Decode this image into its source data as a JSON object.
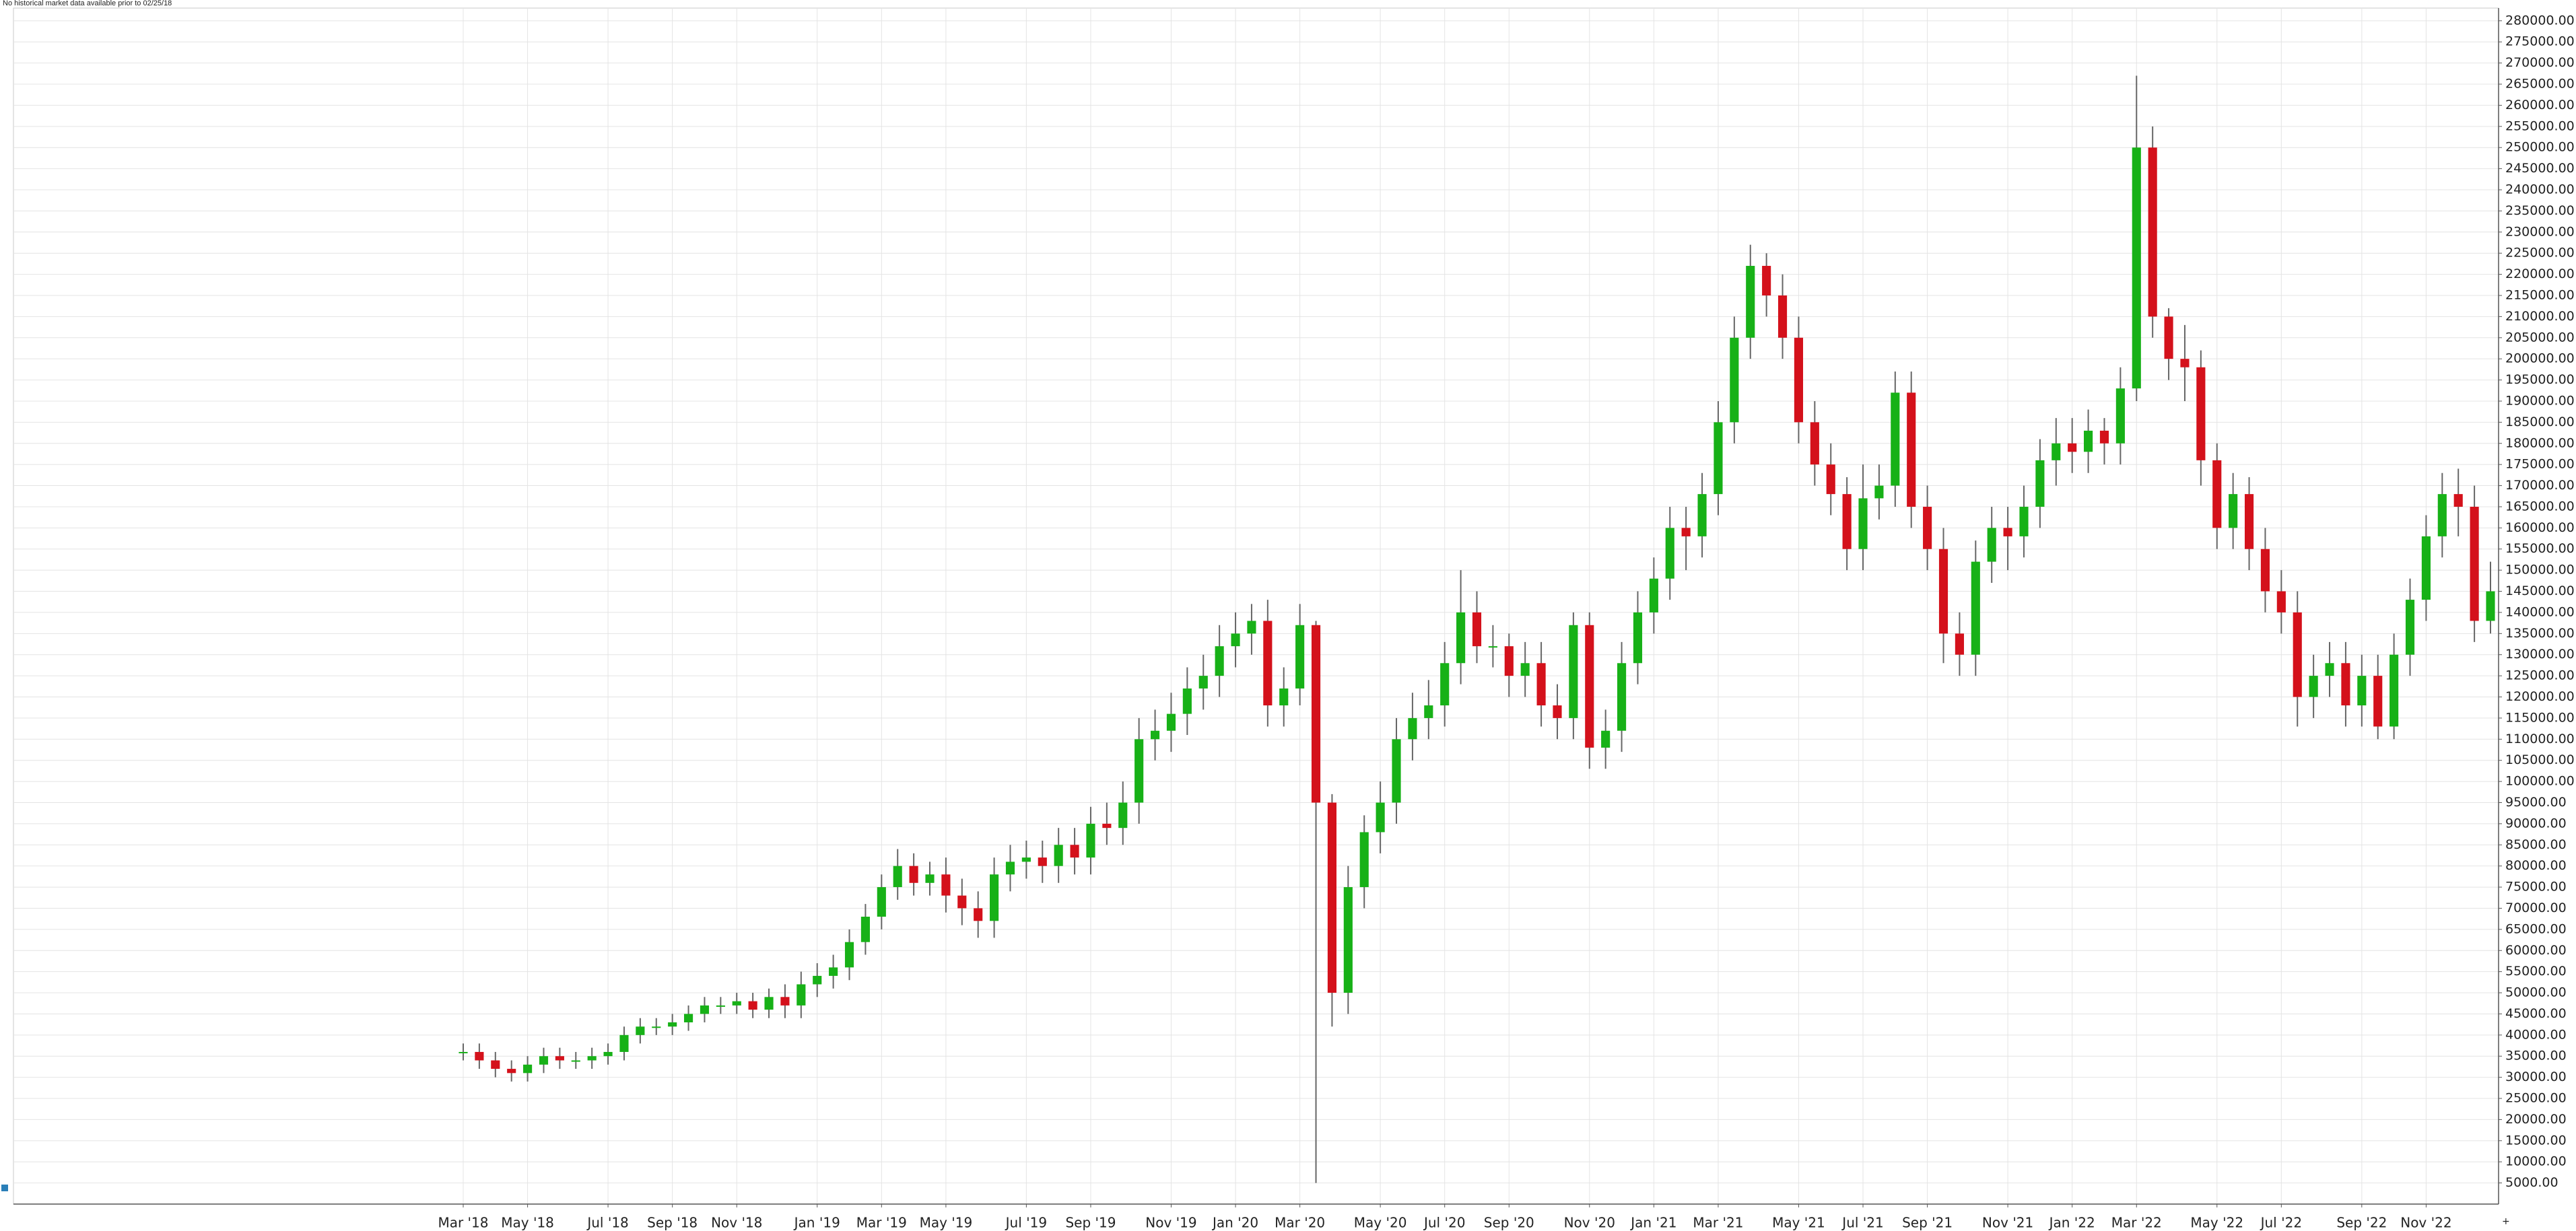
{
  "chart_data": {
    "type": "candlestick",
    "note": "No historical market data available prior to 02/25/18",
    "grid": true,
    "up_color": "#17b117",
    "down_color": "#d4111b",
    "wick_color": "#666666",
    "categories": [
      "Mar '18",
      null,
      null,
      null,
      "May '18",
      null,
      null,
      null,
      null,
      "Jul '18",
      null,
      null,
      null,
      "Sep '18",
      null,
      null,
      null,
      "Nov '18",
      null,
      null,
      null,
      null,
      "Jan '19",
      null,
      null,
      null,
      "Mar '19",
      null,
      null,
      null,
      "May '19",
      null,
      null,
      null,
      null,
      "Jul '19",
      null,
      null,
      null,
      "Sep '19",
      null,
      null,
      null,
      null,
      "Nov '19",
      null,
      null,
      null,
      "Jan '20",
      null,
      null,
      null,
      "Mar '20",
      null,
      null,
      null,
      null,
      "May '20",
      null,
      null,
      null,
      "Jul '20",
      null,
      null,
      null,
      "Sep '20",
      null,
      null,
      null,
      null,
      "Nov '20",
      null,
      null,
      null,
      "Jan '21",
      null,
      null,
      null,
      "Mar '21",
      null,
      null,
      null,
      null,
      "May '21",
      null,
      null,
      null,
      "Jul '21",
      null,
      null,
      null,
      "Sep '21",
      null,
      null,
      null,
      null,
      "Nov '21",
      null,
      null,
      null,
      "Jan '22",
      null,
      null,
      null,
      "Mar '22",
      null,
      null,
      null,
      null,
      "May '22",
      null,
      null,
      null,
      "Jul '22",
      null,
      null,
      null,
      null,
      "Sep '22",
      null,
      null,
      null,
      "Nov '22",
      null,
      null,
      null,
      null
    ],
    "open": [
      36000,
      36000,
      34000,
      32000,
      31000,
      33000,
      35000,
      34000,
      34000,
      35000,
      36000,
      40000,
      42000,
      42000,
      43000,
      45000,
      47000,
      47000,
      48000,
      46000,
      49000,
      47000,
      52000,
      54000,
      56000,
      62000,
      68000,
      75000,
      80000,
      76000,
      78000,
      73000,
      70000,
      67000,
      78000,
      81000,
      82000,
      80000,
      85000,
      82000,
      90000,
      89000,
      95000,
      110000,
      112000,
      116000,
      122000,
      125000,
      132000,
      135000,
      138000,
      118000,
      122000,
      137000,
      95000,
      50000,
      75000,
      88000,
      95000,
      110000,
      115000,
      118000,
      128000,
      140000,
      132000,
      132000,
      125000,
      128000,
      118000,
      115000,
      137000,
      108000,
      112000,
      128000,
      140000,
      148000,
      160000,
      158000,
      168000,
      185000,
      205000,
      222000,
      215000,
      205000,
      185000,
      175000,
      168000,
      155000,
      167000,
      170000,
      192000,
      165000,
      155000,
      135000,
      130000,
      152000,
      160000,
      158000,
      165000,
      176000,
      180000,
      178000,
      183000,
      180000,
      193000,
      250000,
      210000,
      200000,
      198000,
      176000,
      160000,
      168000,
      155000,
      145000,
      140000,
      120000,
      125000,
      128000,
      118000,
      125000,
      113000,
      130000,
      143000,
      158000,
      168000,
      165000,
      138000
    ],
    "high": [
      38000,
      38000,
      36000,
      34000,
      35000,
      37000,
      37000,
      36000,
      37000,
      38000,
      42000,
      44000,
      44000,
      45000,
      47000,
      49000,
      49000,
      50000,
      50000,
      51000,
      52000,
      55000,
      57000,
      59000,
      65000,
      71000,
      78000,
      84000,
      83000,
      81000,
      82000,
      77000,
      74000,
      82000,
      85000,
      86000,
      86000,
      89000,
      89000,
      94000,
      95000,
      100000,
      115000,
      117000,
      121000,
      127000,
      130000,
      137000,
      140000,
      142000,
      143000,
      127000,
      142000,
      138000,
      97000,
      80000,
      92000,
      100000,
      115000,
      121000,
      124000,
      133000,
      150000,
      145000,
      137000,
      135000,
      133000,
      133000,
      123000,
      140000,
      140000,
      117000,
      133000,
      145000,
      153000,
      165000,
      165000,
      173000,
      190000,
      210000,
      227000,
      225000,
      220000,
      210000,
      190000,
      180000,
      172000,
      175000,
      175000,
      197000,
      197000,
      170000,
      160000,
      140000,
      157000,
      165000,
      165000,
      170000,
      181000,
      186000,
      186000,
      188000,
      186000,
      198000,
      267000,
      255000,
      212000,
      208000,
      202000,
      180000,
      173000,
      172000,
      160000,
      150000,
      145000,
      130000,
      133000,
      133000,
      130000,
      130000,
      135000,
      148000,
      163000,
      173000,
      174000,
      170000,
      152000
    ],
    "low": [
      34000,
      32000,
      30000,
      29000,
      29000,
      31000,
      32000,
      32000,
      32000,
      33000,
      34000,
      38000,
      40000,
      40000,
      41000,
      43000,
      45000,
      45000,
      44000,
      44000,
      44000,
      44000,
      49000,
      51000,
      53000,
      59000,
      65000,
      72000,
      73000,
      73000,
      69000,
      66000,
      63000,
      63000,
      74000,
      77000,
      76000,
      76000,
      78000,
      78000,
      85000,
      85000,
      90000,
      105000,
      107000,
      111000,
      117000,
      120000,
      127000,
      130000,
      113000,
      113000,
      118000,
      5000,
      42000,
      45000,
      70000,
      83000,
      90000,
      105000,
      110000,
      113000,
      123000,
      128000,
      127000,
      120000,
      120000,
      113000,
      110000,
      110000,
      103000,
      103000,
      107000,
      123000,
      135000,
      143000,
      150000,
      153000,
      163000,
      180000,
      200000,
      210000,
      200000,
      180000,
      170000,
      163000,
      150000,
      150000,
      162000,
      165000,
      160000,
      150000,
      128000,
      125000,
      125000,
      147000,
      150000,
      153000,
      160000,
      170000,
      173000,
      173000,
      175000,
      175000,
      190000,
      205000,
      195000,
      190000,
      170000,
      155000,
      155000,
      150000,
      140000,
      135000,
      113000,
      115000,
      120000,
      113000,
      113000,
      110000,
      110000,
      125000,
      138000,
      153000,
      158000,
      133000,
      135000
    ],
    "close": [
      36000,
      34000,
      32000,
      31000,
      33000,
      35000,
      34000,
      34000,
      35000,
      36000,
      40000,
      42000,
      42000,
      43000,
      45000,
      47000,
      47000,
      48000,
      46000,
      49000,
      47000,
      52000,
      54000,
      56000,
      62000,
      68000,
      75000,
      80000,
      76000,
      78000,
      73000,
      70000,
      67000,
      78000,
      81000,
      82000,
      80000,
      85000,
      82000,
      90000,
      89000,
      95000,
      110000,
      112000,
      116000,
      122000,
      125000,
      132000,
      135000,
      138000,
      118000,
      122000,
      137000,
      95000,
      50000,
      75000,
      88000,
      95000,
      110000,
      115000,
      118000,
      128000,
      140000,
      132000,
      132000,
      125000,
      128000,
      118000,
      115000,
      137000,
      108000,
      112000,
      128000,
      140000,
      148000,
      160000,
      158000,
      168000,
      185000,
      205000,
      222000,
      215000,
      205000,
      185000,
      175000,
      168000,
      155000,
      167000,
      170000,
      192000,
      165000,
      155000,
      135000,
      130000,
      152000,
      160000,
      158000,
      165000,
      176000,
      180000,
      178000,
      183000,
      180000,
      193000,
      250000,
      210000,
      200000,
      198000,
      176000,
      160000,
      168000,
      155000,
      145000,
      140000,
      120000,
      125000,
      128000,
      118000,
      125000,
      113000,
      130000,
      143000,
      158000,
      168000,
      165000,
      138000,
      145000
    ],
    "ylim": [
      0,
      283000
    ],
    "yticks": [
      {
        "value": 5000,
        "label": "5000.00"
      },
      {
        "value": 10000,
        "label": "10000.00"
      },
      {
        "value": 15000,
        "label": "15000.00"
      },
      {
        "value": 20000,
        "label": "20000.00"
      },
      {
        "value": 25000,
        "label": "25000.00"
      },
      {
        "value": 30000,
        "label": "30000.00"
      },
      {
        "value": 35000,
        "label": "35000.00"
      },
      {
        "value": 40000,
        "label": "40000.00"
      },
      {
        "value": 45000,
        "label": "45000.00"
      },
      {
        "value": 50000,
        "label": "50000.00"
      },
      {
        "value": 55000,
        "label": "55000.00"
      },
      {
        "value": 60000,
        "label": "60000.00"
      },
      {
        "value": 65000,
        "label": "65000.00"
      },
      {
        "value": 70000,
        "label": "70000.00"
      },
      {
        "value": 75000,
        "label": "75000.00"
      },
      {
        "value": 80000,
        "label": "80000.00"
      },
      {
        "value": 85000,
        "label": "85000.00"
      },
      {
        "value": 90000,
        "label": "90000.00"
      },
      {
        "value": 95000,
        "label": "95000.00"
      },
      {
        "value": 100000,
        "label": "100000.00"
      },
      {
        "value": 105000,
        "label": "105000.00"
      },
      {
        "value": 110000,
        "label": "110000.00"
      },
      {
        "value": 115000,
        "label": "115000.00"
      },
      {
        "value": 120000,
        "label": "120000.00"
      },
      {
        "value": 125000,
        "label": "125000.00"
      },
      {
        "value": 130000,
        "label": "130000.00"
      },
      {
        "value": 135000,
        "label": "135000.00"
      },
      {
        "value": 140000,
        "label": "140000.00"
      },
      {
        "value": 145000,
        "label": "145000.00"
      },
      {
        "value": 150000,
        "label": "150000.00"
      },
      {
        "value": 155000,
        "label": "155000.00"
      },
      {
        "value": 160000,
        "label": "160000.00"
      },
      {
        "value": 165000,
        "label": "165000.00"
      },
      {
        "value": 170000,
        "label": "170000.00"
      },
      {
        "value": 175000,
        "label": "175000.00"
      },
      {
        "value": 180000,
        "label": "180000.00"
      },
      {
        "value": 185000,
        "label": "185000.00"
      },
      {
        "value": 190000,
        "label": "190000.00"
      },
      {
        "value": 195000,
        "label": "195000.00"
      },
      {
        "value": 200000,
        "label": "200000.00"
      },
      {
        "value": 205000,
        "label": "205000.00"
      },
      {
        "value": 210000,
        "label": "210000.00"
      },
      {
        "value": 215000,
        "label": "215000.00"
      },
      {
        "value": 220000,
        "label": "220000.00"
      },
      {
        "value": 225000,
        "label": "225000.00"
      },
      {
        "value": 230000,
        "label": "230000.00"
      },
      {
        "value": 235000,
        "label": "235000.00"
      },
      {
        "value": 240000,
        "label": "240000.00"
      },
      {
        "value": 245000,
        "label": "245000.00"
      },
      {
        "value": 250000,
        "label": "250000.00"
      },
      {
        "value": 255000,
        "label": "255000.00"
      },
      {
        "value": 260000,
        "label": "260000.00"
      },
      {
        "value": 265000,
        "label": "265000.00"
      },
      {
        "value": 270000,
        "label": "270000.00"
      },
      {
        "value": 275000,
        "label": "275000.00"
      },
      {
        "value": 280000,
        "label": "280000.00"
      }
    ]
  }
}
